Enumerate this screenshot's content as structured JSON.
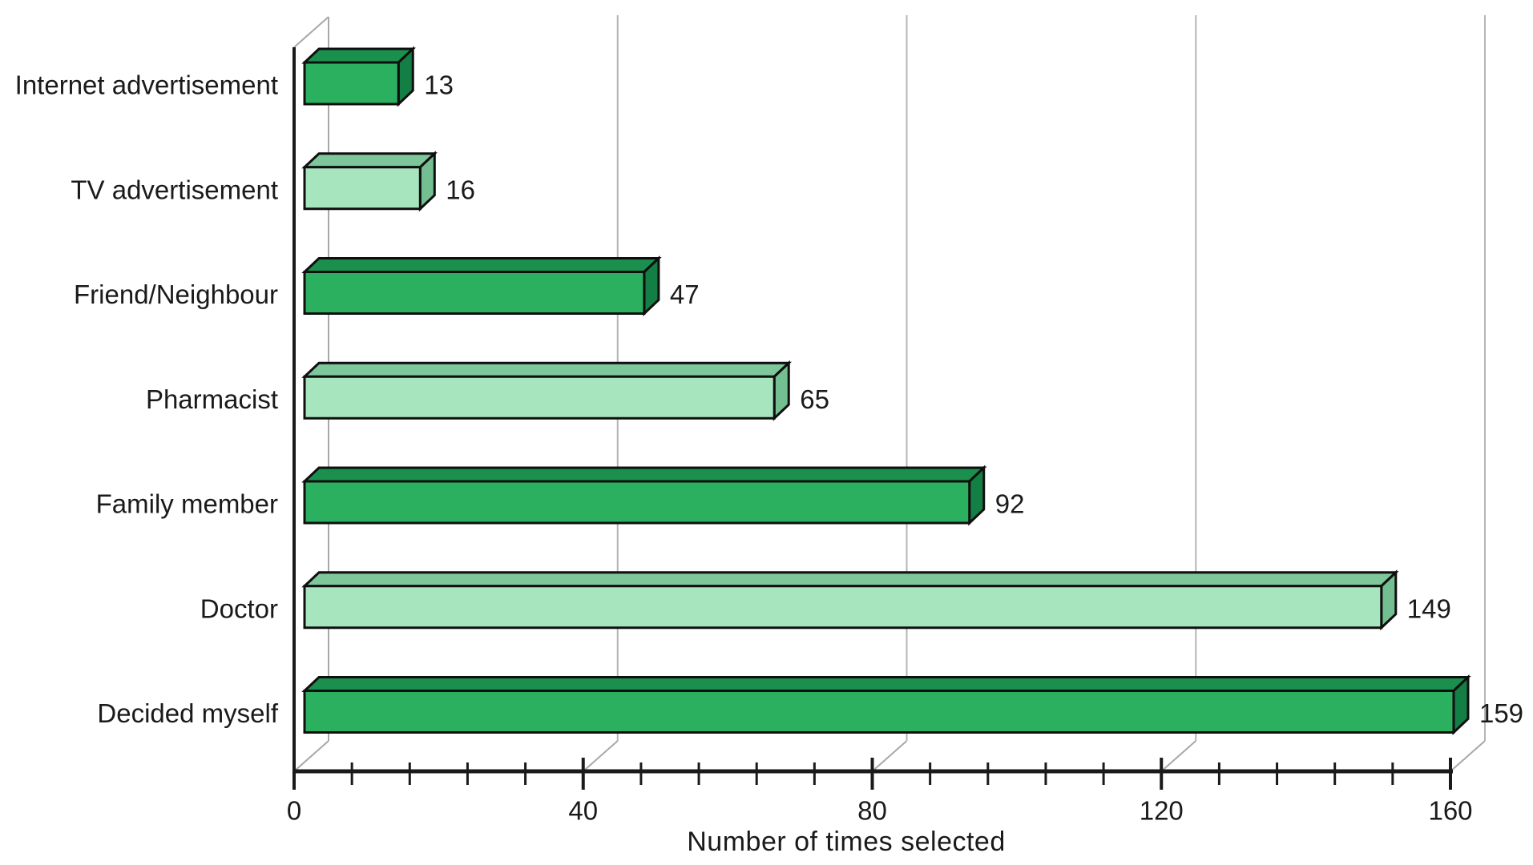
{
  "chart_data": {
    "type": "bar",
    "orientation": "horizontal",
    "style": "3d-horizontal-bars",
    "title": "",
    "xlabel": "Number of times selected",
    "ylabel": "",
    "categories": [
      "Internet advertisement",
      "TV advertisement",
      "Friend/Neighbour",
      "Pharmacist",
      "Family member",
      "Doctor",
      "Decided myself"
    ],
    "values": [
      13,
      16,
      47,
      65,
      92,
      149,
      159
    ],
    "value_labels": [
      "13",
      "16",
      "47",
      "65",
      "92",
      "149",
      "159"
    ],
    "xlim": [
      0,
      160
    ],
    "x_major_ticks": [
      0,
      40,
      80,
      120,
      160
    ],
    "x_major_tick_labels": [
      "0",
      "40",
      "80",
      "120",
      "160"
    ],
    "x_minor_ticks": [
      8,
      16,
      24,
      32,
      48,
      56,
      64,
      72,
      88,
      96,
      104,
      112,
      128,
      136,
      144,
      152
    ],
    "grid": true,
    "legend": false,
    "colors": {
      "bar_dark_front": "#2bb05f",
      "bar_dark_top": "#1b8f4e",
      "bar_dark_side": "#147f45",
      "bar_light_front": "#a7e5bf",
      "bar_light_top": "#7ec79b",
      "bar_light_side": "#74bf92",
      "outline": "#0f0f0f",
      "gridline": "#b5b5b5",
      "wall_line": "#a8a8a8",
      "axis": "#1a1a1a",
      "text": "#1a1a1a",
      "background": "#ffffff"
    }
  }
}
